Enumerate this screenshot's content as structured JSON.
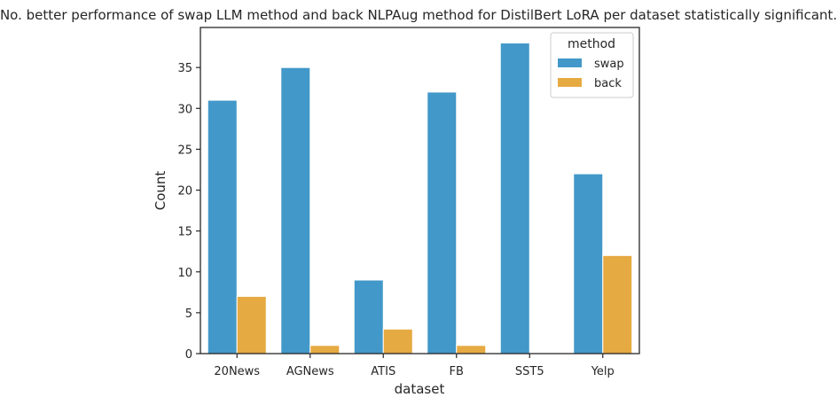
{
  "chart_data": {
    "type": "bar",
    "title": "No. better performance of swap LLM method and back NLPAug method for DistilBert LoRA per dataset statistically significant.",
    "xlabel": "dataset",
    "ylabel": "Count",
    "categories": [
      "20News",
      "AGNews",
      "ATIS",
      "FB",
      "SST5",
      "Yelp"
    ],
    "series": [
      {
        "name": "swap",
        "values": [
          31,
          35,
          9,
          32,
          38,
          22
        ],
        "color": "#4298c9"
      },
      {
        "name": "back",
        "values": [
          7,
          1,
          3,
          1,
          0,
          12
        ],
        "color": "#e6aa42"
      }
    ],
    "ylim": [
      0,
      39.9
    ],
    "yticks": [
      0,
      5,
      10,
      15,
      20,
      25,
      30,
      35
    ],
    "grid": false,
    "legend": {
      "title": "method",
      "placement": "top-right"
    }
  }
}
